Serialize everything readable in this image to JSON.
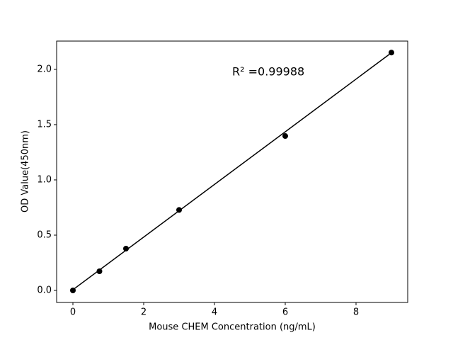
{
  "chart_data": {
    "type": "scatter",
    "xlabel": "Mouse CHEM Concentration (ng/mL)",
    "ylabel": "OD Value(450nm)",
    "annotation": "R² =0.99988",
    "series": [
      {
        "color": "#000000",
        "marker": "circle",
        "x": [
          0,
          0.75,
          1.5,
          3,
          6,
          9
        ],
        "values": [
          0.0,
          0.173,
          0.378,
          0.728,
          1.397,
          2.152
        ]
      },
      {
        "color": "#000000",
        "line": true,
        "x": [
          0,
          9
        ],
        "values": [
          0.006,
          2.15
        ]
      }
    ],
    "xlim": [
      -0.46,
      9.46
    ],
    "ylim": [
      -0.109,
      2.256
    ],
    "xticks": [
      0,
      2,
      4,
      6,
      8
    ],
    "yticks": [
      {
        "value": 0,
        "label": "0.0"
      },
      {
        "value": 0.5,
        "label": "0.5"
      },
      {
        "value": 1,
        "label": "1.0"
      },
      {
        "value": 1.5,
        "label": "1.5"
      },
      {
        "value": 2,
        "label": "2.0"
      }
    ],
    "grid": false
  }
}
